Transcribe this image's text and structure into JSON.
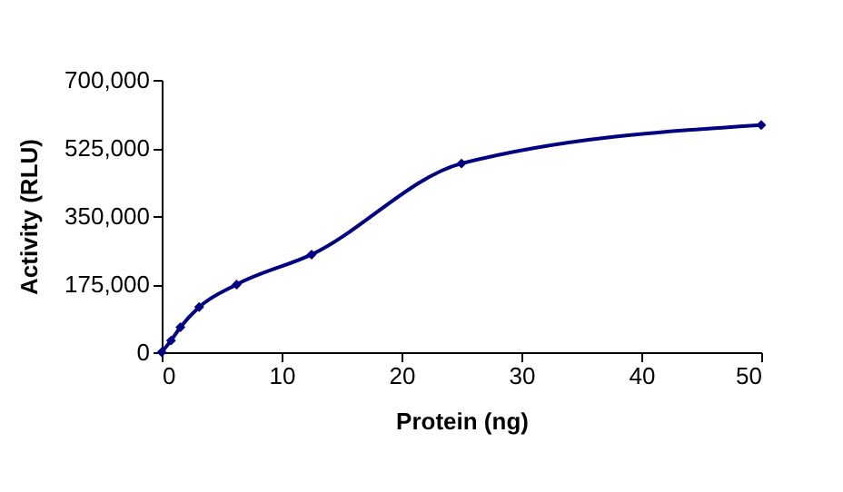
{
  "chart_data": {
    "type": "line",
    "xlabel": "Protein (ng)",
    "ylabel": "Activity (RLU)",
    "x": [
      0,
      0.78,
      1.56,
      3.125,
      6.25,
      12.5,
      25,
      50
    ],
    "series": [
      {
        "color": "#000080",
        "values": [
          0,
          30000,
          64000,
          116000,
          174000,
          251000,
          485000,
          584000
        ]
      }
    ],
    "xlim": [
      0,
      50
    ],
    "xticks": [
      0,
      10,
      20,
      30,
      40,
      50
    ],
    "ylim": [
      0,
      700000
    ],
    "yticks": [
      {
        "value": 0,
        "label": "0"
      },
      {
        "value": 175000,
        "label": "175,000"
      },
      {
        "value": 350000,
        "label": "350,000"
      },
      {
        "value": 525000,
        "label": "525,000"
      },
      {
        "value": 700000,
        "label": "700,000"
      }
    ],
    "grid": false,
    "marker": "diamond"
  }
}
